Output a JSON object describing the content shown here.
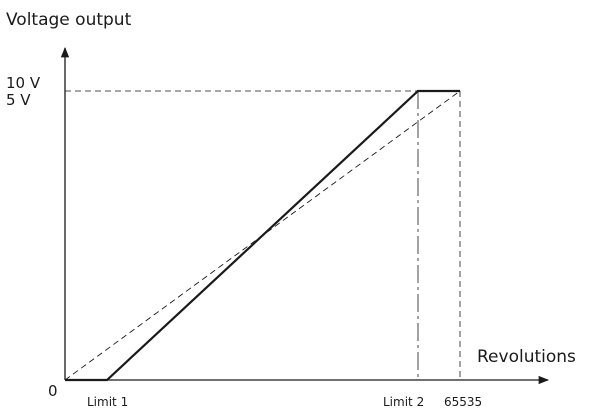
{
  "diagram": {
    "y_axis_title": "Voltage output",
    "x_axis_title": "Revolutions",
    "origin_label": "0",
    "y_tick_top": "10 V",
    "y_tick_second": "5 V",
    "x_ticks": {
      "limit1": "Limit 1",
      "limit2": "Limit 2",
      "max": "65535"
    },
    "curves": [
      {
        "style": "solid",
        "points": [
          [
            "0",
            "0"
          ],
          [
            "Limit 1",
            "0"
          ],
          [
            "Limit 2",
            "10 V / 5 V"
          ],
          [
            "65535",
            "10 V / 5 V"
          ]
        ]
      },
      {
        "style": "dashed",
        "points": [
          [
            "0",
            "0"
          ],
          [
            "65535",
            "10 V / 5 V"
          ]
        ]
      }
    ],
    "colors": {
      "line": "#1a1a1a"
    }
  }
}
